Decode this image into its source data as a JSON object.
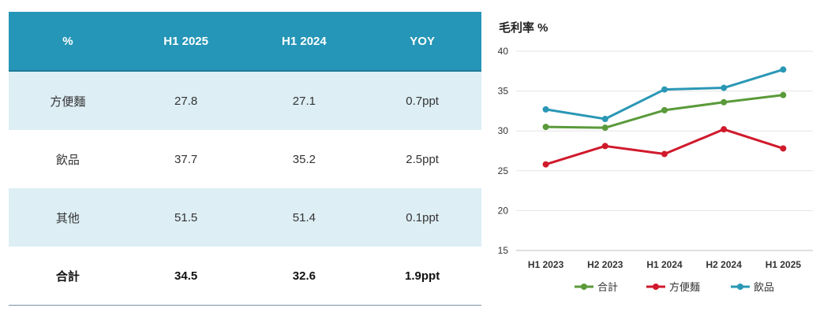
{
  "table": {
    "headers": [
      "%",
      "H1 2025",
      "H1 2024",
      "YOY"
    ],
    "rows": [
      {
        "label": "方便麵",
        "h1_2025": "27.8",
        "h1_2024": "27.1",
        "yoy": "0.7ppt"
      },
      {
        "label": "飲品",
        "h1_2025": "37.7",
        "h1_2024": "35.2",
        "yoy": "2.5ppt"
      },
      {
        "label": "其他",
        "h1_2025": "51.5",
        "h1_2024": "51.4",
        "yoy": "0.1ppt"
      },
      {
        "label": "合計",
        "h1_2025": "34.5",
        "h1_2024": "32.6",
        "yoy": "1.9ppt"
      }
    ]
  },
  "chart_data": {
    "type": "line",
    "title": "毛利率 %",
    "categories": [
      "H1 2023",
      "H2 2023",
      "H1 2024",
      "H2 2024",
      "H1 2025"
    ],
    "ylim": [
      15,
      40
    ],
    "yticks": [
      15,
      20,
      25,
      30,
      35,
      40
    ],
    "grid": true,
    "legend_position": "bottom",
    "series": [
      {
        "name": "合計",
        "color": "#5a9a3a",
        "values": [
          30.5,
          30.4,
          32.6,
          33.6,
          34.5
        ]
      },
      {
        "name": "方便麵",
        "color": "#d0192b",
        "values": [
          25.8,
          28.1,
          27.1,
          30.2,
          27.8
        ]
      },
      {
        "name": "飲品",
        "color": "#2a97b5",
        "values": [
          32.7,
          31.5,
          35.2,
          35.4,
          37.7
        ]
      }
    ]
  }
}
